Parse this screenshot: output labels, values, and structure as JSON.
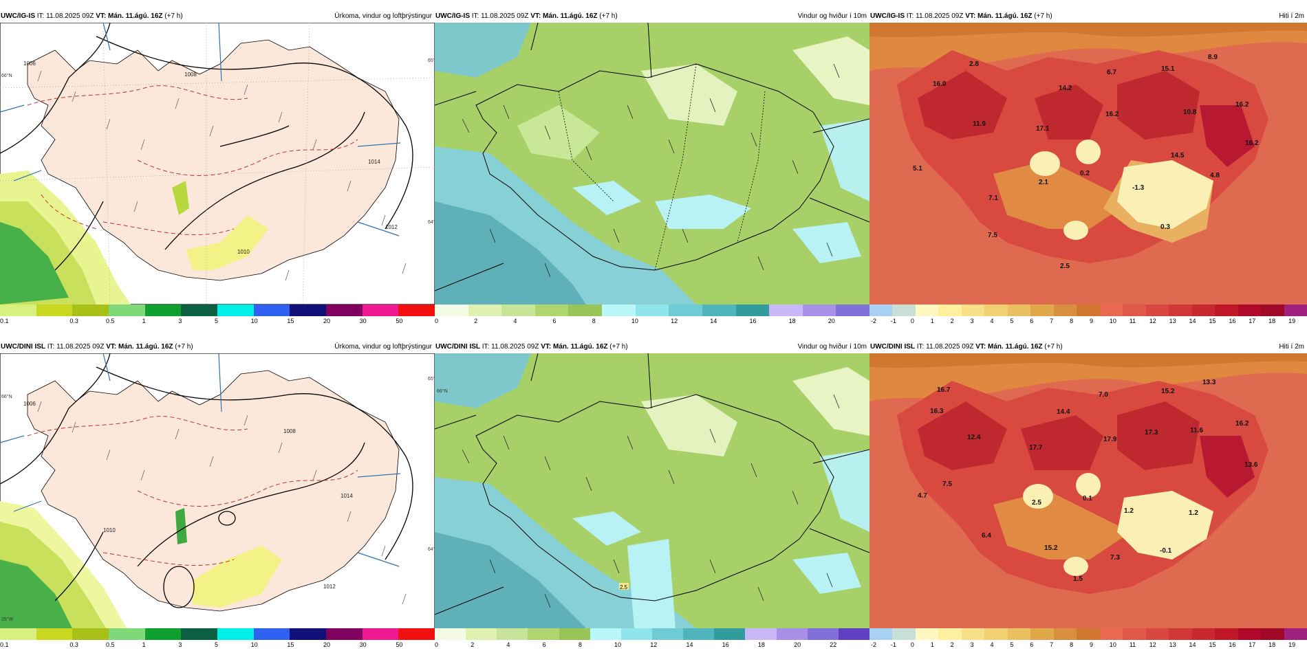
{
  "rows": [
    {
      "model": "UWC/IG-IS",
      "it_label": "IT:",
      "it_value": "11.08.2025 09Z",
      "vt_label": "VT:",
      "vt_value": "Mán. 11.ágú. 16Z",
      "lead": "(+7 h)"
    },
    {
      "model": "UWC/DINI ISL",
      "it_label": "IT:",
      "it_value": "11.08.2025 09Z",
      "vt_label": "VT:",
      "vt_value": "Mán. 11.ágú. 16Z",
      "lead": "(+7 h)"
    }
  ],
  "titles": {
    "precip": "Úrkoma, vindur og loftþrýstingur",
    "wind": "Vindur og hviður í 10m",
    "temp": "Hiti í 2m"
  },
  "edge_labels": {
    "n66": "66°N",
    "n65": "65°N",
    "n64": "64°N",
    "w25": "25°W"
  },
  "precip_scale": {
    "colors": [
      "#d8f080",
      "#c8d820",
      "#a8c018",
      "#80d878",
      "#10a030",
      "#0a6040",
      "#00f0e8",
      "#3060f0",
      "#101078",
      "#800060",
      "#f01890",
      "#f01010"
    ],
    "labels": [
      "0.1",
      "0.3",
      "0.5",
      "1",
      "3",
      "5",
      "10",
      "15",
      "20",
      "30",
      "50"
    ]
  },
  "wind_scale_top": {
    "colors": [
      "#f4fbe4",
      "#e0f0b0",
      "#c8e498",
      "#b0d470",
      "#98c458",
      "#b8f8f8",
      "#90e4ec",
      "#70ccd4",
      "#50b4bc",
      "#309c9c",
      "#c8b8f8",
      "#a890e8",
      "#8070d8"
    ],
    "labels": [
      "0",
      "2",
      "4",
      "6",
      "8",
      "10",
      "12",
      "14",
      "16",
      "18",
      "20"
    ]
  },
  "wind_scale_bottom": {
    "colors": [
      "#f4fbe4",
      "#e0f0b0",
      "#c8e498",
      "#b0d470",
      "#98c458",
      "#b8f8f8",
      "#90e4ec",
      "#70ccd4",
      "#50b4bc",
      "#309c9c",
      "#c8b8f8",
      "#a890e8",
      "#8070d8",
      "#6040c0"
    ],
    "labels": [
      "0",
      "2",
      "4",
      "6",
      "8",
      "10",
      "12",
      "14",
      "16",
      "18",
      "20",
      "22"
    ]
  },
  "temp_scale": {
    "colors": [
      "#a8d0f0",
      "#c8e0d8",
      "#fff8c0",
      "#fff0a0",
      "#f8e088",
      "#f0d070",
      "#e8c060",
      "#e0a848",
      "#d89040",
      "#d07830",
      "#e86850",
      "#e05848",
      "#d84840",
      "#d03838",
      "#c82830",
      "#c01828",
      "#b00828",
      "#a00828",
      "#a02080"
    ],
    "labels": [
      "-2",
      "-1",
      "0",
      "1",
      "2",
      "3",
      "4",
      "5",
      "6",
      "7",
      "8",
      "9",
      "10",
      "11",
      "12",
      "13",
      "14",
      "15",
      "16",
      "17",
      "18",
      "19"
    ]
  },
  "temp_values_top": [
    "16.0",
    "2.8",
    "14.2",
    "6.7",
    "15.1",
    "8.9",
    "11.9",
    "17.1",
    "16.2",
    "10.8",
    "16.2",
    "16.2",
    "14.5",
    "5.1",
    "2.1",
    "0.2",
    "-1.3",
    "4.8",
    "7.1",
    "0.3",
    "7.5",
    "2.5"
  ],
  "temp_values_bottom": [
    "16.7",
    "7.0",
    "15.2",
    "13.3",
    "16.3",
    "14.4",
    "12.4",
    "17.7",
    "17.9",
    "17.3",
    "11.6",
    "16.2",
    "13.6",
    "7.5",
    "4.7",
    "2.5",
    "0.1",
    "1.2",
    "1.2",
    "6.4",
    "-0.1",
    "15.2",
    "7.3",
    "1.5"
  ],
  "iso_labels": [
    "1006",
    "1008",
    "1010",
    "1012",
    "1014"
  ],
  "wind_spot_value": "2.5"
}
